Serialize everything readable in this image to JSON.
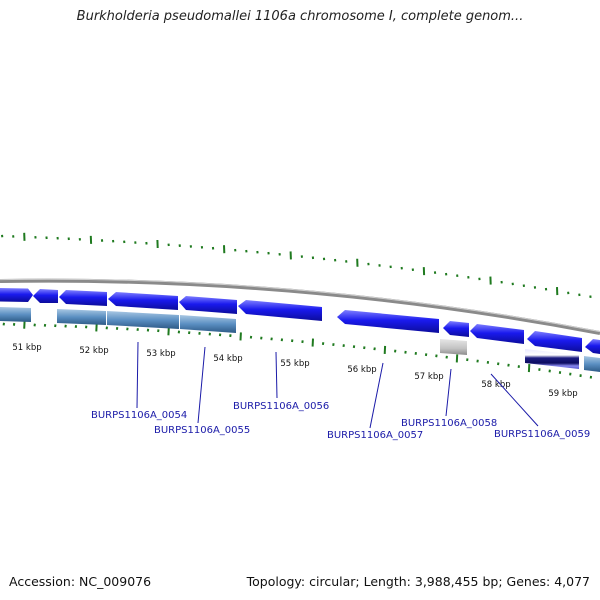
{
  "title": "Burkholderia pseudomallei 1106a chromosome I, complete genom...",
  "footer": {
    "accession": "Accession: NC_009076",
    "summary": "Topology: circular; Length: 3,988,455 bp; Genes: 4,077"
  },
  "colors": {
    "forward_gene": "#1a1aee",
    "reverse_gene": "#5b8fc2",
    "pseudo_gene": "#bbbbbb",
    "backbone": "#8a8a8a",
    "ticks": "#1f7a1f",
    "gene_label": "#1a1aa8"
  },
  "ruler": {
    "units": "kbp",
    "labels": [
      "51 kbp",
      "52 kbp",
      "53 kbp",
      "54 kbp",
      "55 kbp",
      "56 kbp",
      "57 kbp",
      "58 kbp",
      "59 kbp"
    ]
  },
  "gene_labels": [
    {
      "text": "BURPS1106A_0054"
    },
    {
      "text": "BURPS1106A_0055"
    },
    {
      "text": "BURPS1106A_0056"
    },
    {
      "text": "BURPS1106A_0057"
    },
    {
      "text": "BURPS1106A_0058"
    },
    {
      "text": "BURPS1106A_0059"
    }
  ]
}
